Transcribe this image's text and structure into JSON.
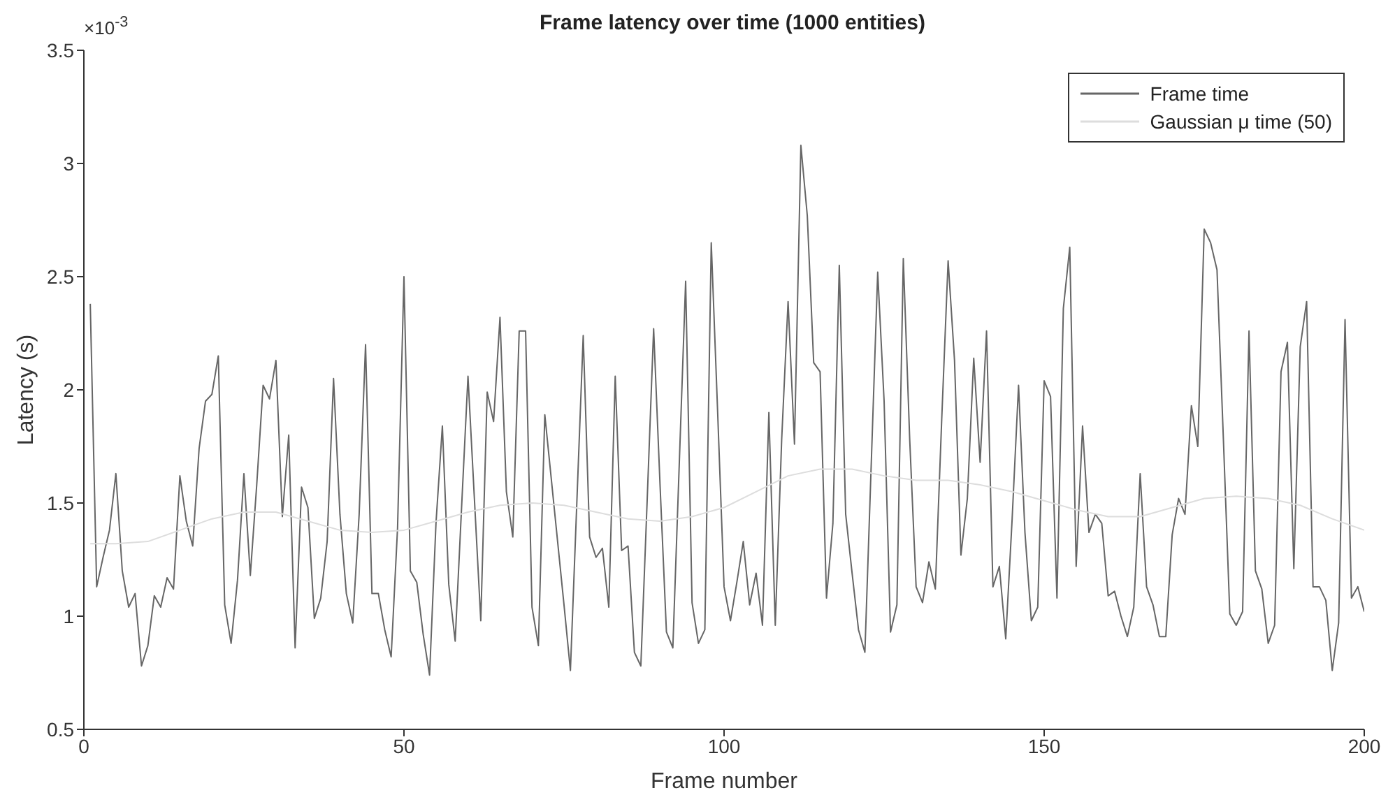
{
  "chart_data": {
    "type": "line",
    "title": "Frame latency over time (1000 entities)",
    "xlabel": "Frame number",
    "ylabel": "Latency (s)",
    "annotations": [
      "×10$^{-3}$"
    ],
    "xlim": [
      0,
      200
    ],
    "xticks": [
      0,
      50,
      100,
      150,
      200
    ],
    "ylim": [
      0.5,
      3.5
    ],
    "yticks": [
      0.5,
      1,
      1.5,
      2,
      2.5,
      3,
      3.5
    ],
    "legend": "top right",
    "marker": "none",
    "line_style": "solid",
    "series": [
      {
        "name": "Frame time",
        "color": "#666666",
        "x": [
          1,
          2,
          3,
          4,
          5,
          6,
          7,
          8,
          9,
          10,
          11,
          12,
          13,
          14,
          15,
          16,
          17,
          18,
          19,
          20,
          21,
          22,
          23,
          24,
          25,
          26,
          27,
          28,
          29,
          30,
          31,
          32,
          33,
          34,
          35,
          36,
          37,
          38,
          39,
          40,
          41,
          42,
          43,
          44,
          45,
          46,
          47,
          48,
          49,
          50,
          51,
          52,
          53,
          54,
          55,
          56,
          57,
          58,
          59,
          60,
          61,
          62,
          63,
          64,
          65,
          66,
          67,
          68,
          69,
          70,
          71,
          72,
          73,
          74,
          75,
          76,
          77,
          78,
          79,
          80,
          81,
          82,
          83,
          84,
          85,
          86,
          87,
          88,
          89,
          90,
          91,
          92,
          93,
          94,
          95,
          96,
          97,
          98,
          99,
          100,
          101,
          102,
          103,
          104,
          105,
          106,
          107,
          108,
          109,
          110,
          111,
          112,
          113,
          114,
          115,
          116,
          117,
          118,
          119,
          120,
          121,
          122,
          123,
          124,
          125,
          126,
          127,
          128,
          129,
          130,
          131,
          132,
          133,
          134,
          135,
          136,
          137,
          138,
          139,
          140,
          141,
          142,
          143,
          144,
          145,
          146,
          147,
          148,
          149,
          150,
          151,
          152,
          153,
          154,
          155,
          156,
          157,
          158,
          159,
          160,
          161,
          162,
          163,
          164,
          165,
          166,
          167,
          168,
          169,
          170,
          171,
          172,
          173,
          174,
          175,
          176,
          177,
          178,
          179,
          180,
          181,
          182,
          183,
          184,
          185,
          186,
          187,
          188,
          189,
          190,
          191,
          192,
          193,
          194,
          195,
          196,
          197,
          198,
          199,
          200
        ],
        "values": [
          2.38,
          1.13,
          1.26,
          1.38,
          1.63,
          1.2,
          1.04,
          1.1,
          0.78,
          0.87,
          1.09,
          1.04,
          1.17,
          1.12,
          1.62,
          1.42,
          1.31,
          1.74,
          1.95,
          1.98,
          2.15,
          1.05,
          0.88,
          1.16,
          1.63,
          1.18,
          1.58,
          2.02,
          1.96,
          2.13,
          1.44,
          1.8,
          0.86,
          1.57,
          1.48,
          0.99,
          1.08,
          1.33,
          2.05,
          1.45,
          1.1,
          0.97,
          1.45,
          2.2,
          1.1,
          1.1,
          0.94,
          0.82,
          1.39,
          2.5,
          1.2,
          1.15,
          0.92,
          0.74,
          1.41,
          1.84,
          1.14,
          0.89,
          1.48,
          2.06,
          1.52,
          0.98,
          1.99,
          1.86,
          2.32,
          1.55,
          1.35,
          2.26,
          2.26,
          1.04,
          0.87,
          1.89,
          1.61,
          1.33,
          1.05,
          0.76,
          1.5,
          2.24,
          1.35,
          1.26,
          1.3,
          1.04,
          2.06,
          1.29,
          1.31,
          0.84,
          0.78,
          1.52,
          2.27,
          1.58,
          0.93,
          0.86,
          1.67,
          2.48,
          1.06,
          0.88,
          0.94,
          2.65,
          1.9,
          1.13,
          0.98,
          1.15,
          1.33,
          1.05,
          1.19,
          0.96,
          1.9,
          0.96,
          1.78,
          2.39,
          1.76,
          3.08,
          2.77,
          2.12,
          2.08,
          1.08,
          1.41,
          2.55,
          1.45,
          1.19,
          0.94,
          0.84,
          1.68,
          2.52,
          1.95,
          0.93,
          1.05,
          2.58,
          1.78,
          1.13,
          1.06,
          1.24,
          1.12,
          1.87,
          2.57,
          2.13,
          1.27,
          1.52,
          2.14,
          1.68,
          2.26,
          1.13,
          1.22,
          0.9,
          1.43,
          2.02,
          1.37,
          0.98,
          1.04,
          2.04,
          1.97,
          1.08,
          2.36,
          2.63,
          1.22,
          1.84,
          1.37,
          1.45,
          1.41,
          1.09,
          1.11,
          1.0,
          0.91,
          1.04,
          1.63,
          1.13,
          1.05,
          0.91,
          0.91,
          1.36,
          1.52,
          1.45,
          1.93,
          1.75,
          2.71,
          2.65,
          2.53,
          1.78,
          1.01,
          0.96,
          1.02,
          2.26,
          1.2,
          1.12,
          0.88,
          0.96,
          2.08,
          2.21,
          1.21,
          2.19,
          2.39,
          1.13,
          1.13,
          1.07,
          0.76,
          0.97,
          2.31,
          1.08,
          1.13,
          1.02
        ]
      },
      {
        "name": "Gaussian μ time (50)",
        "color": "#dddddd",
        "x": [
          1,
          5,
          10,
          15,
          20,
          25,
          30,
          35,
          40,
          45,
          50,
          55,
          60,
          65,
          70,
          75,
          80,
          85,
          90,
          95,
          100,
          105,
          110,
          115,
          120,
          125,
          130,
          135,
          140,
          145,
          150,
          155,
          160,
          165,
          170,
          175,
          180,
          185,
          190,
          195,
          200
        ],
        "values": [
          1.32,
          1.32,
          1.33,
          1.38,
          1.43,
          1.46,
          1.46,
          1.42,
          1.38,
          1.37,
          1.38,
          1.42,
          1.46,
          1.49,
          1.5,
          1.49,
          1.46,
          1.43,
          1.42,
          1.44,
          1.48,
          1.55,
          1.62,
          1.65,
          1.65,
          1.62,
          1.6,
          1.6,
          1.58,
          1.55,
          1.51,
          1.47,
          1.44,
          1.44,
          1.48,
          1.52,
          1.53,
          1.52,
          1.49,
          1.43,
          1.38
        ]
      }
    ]
  }
}
